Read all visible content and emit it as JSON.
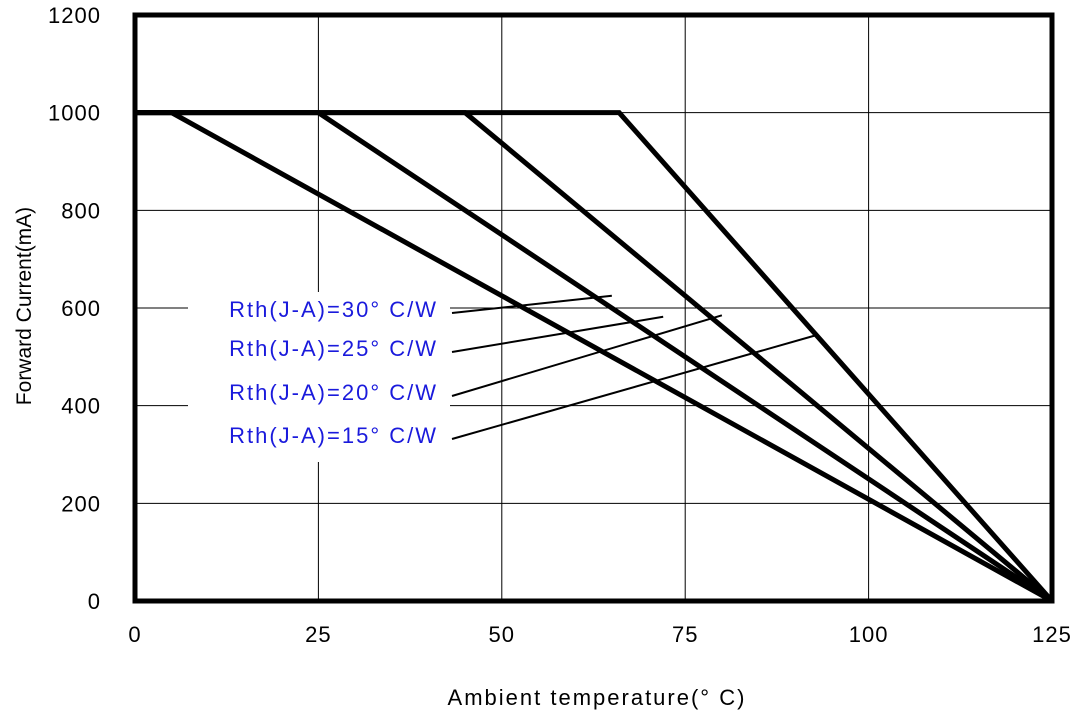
{
  "chart_data": {
    "type": "line",
    "xlabel": "Ambient temperature(° C)",
    "ylabel": "Forward Current(mA)",
    "xlim": [
      0,
      125
    ],
    "ylim": [
      0,
      1200
    ],
    "xticks": [
      0,
      25,
      50,
      75,
      100,
      125
    ],
    "yticks": [
      0,
      200,
      400,
      600,
      800,
      1000,
      1200
    ],
    "grid": true,
    "series": [
      {
        "name": "Rth(J-A)=30° C/W",
        "points": [
          [
            0,
            1000
          ],
          [
            5,
            1000
          ],
          [
            125,
            0
          ]
        ]
      },
      {
        "name": "Rth(J-A)=25° C/W",
        "points": [
          [
            0,
            1000
          ],
          [
            25,
            1000
          ],
          [
            125,
            0
          ]
        ]
      },
      {
        "name": "Rth(J-A)=20° C/W",
        "points": [
          [
            0,
            1000
          ],
          [
            45,
            1000
          ],
          [
            125,
            0
          ]
        ]
      },
      {
        "name": "Rth(J-A)=15° C/W",
        "points": [
          [
            0,
            1000
          ],
          [
            66,
            1000
          ],
          [
            125,
            0
          ]
        ]
      }
    ],
    "leader_targets": [
      [
        65,
        625
      ],
      [
        72,
        582
      ],
      [
        80,
        585
      ],
      [
        93,
        545
      ]
    ]
  }
}
